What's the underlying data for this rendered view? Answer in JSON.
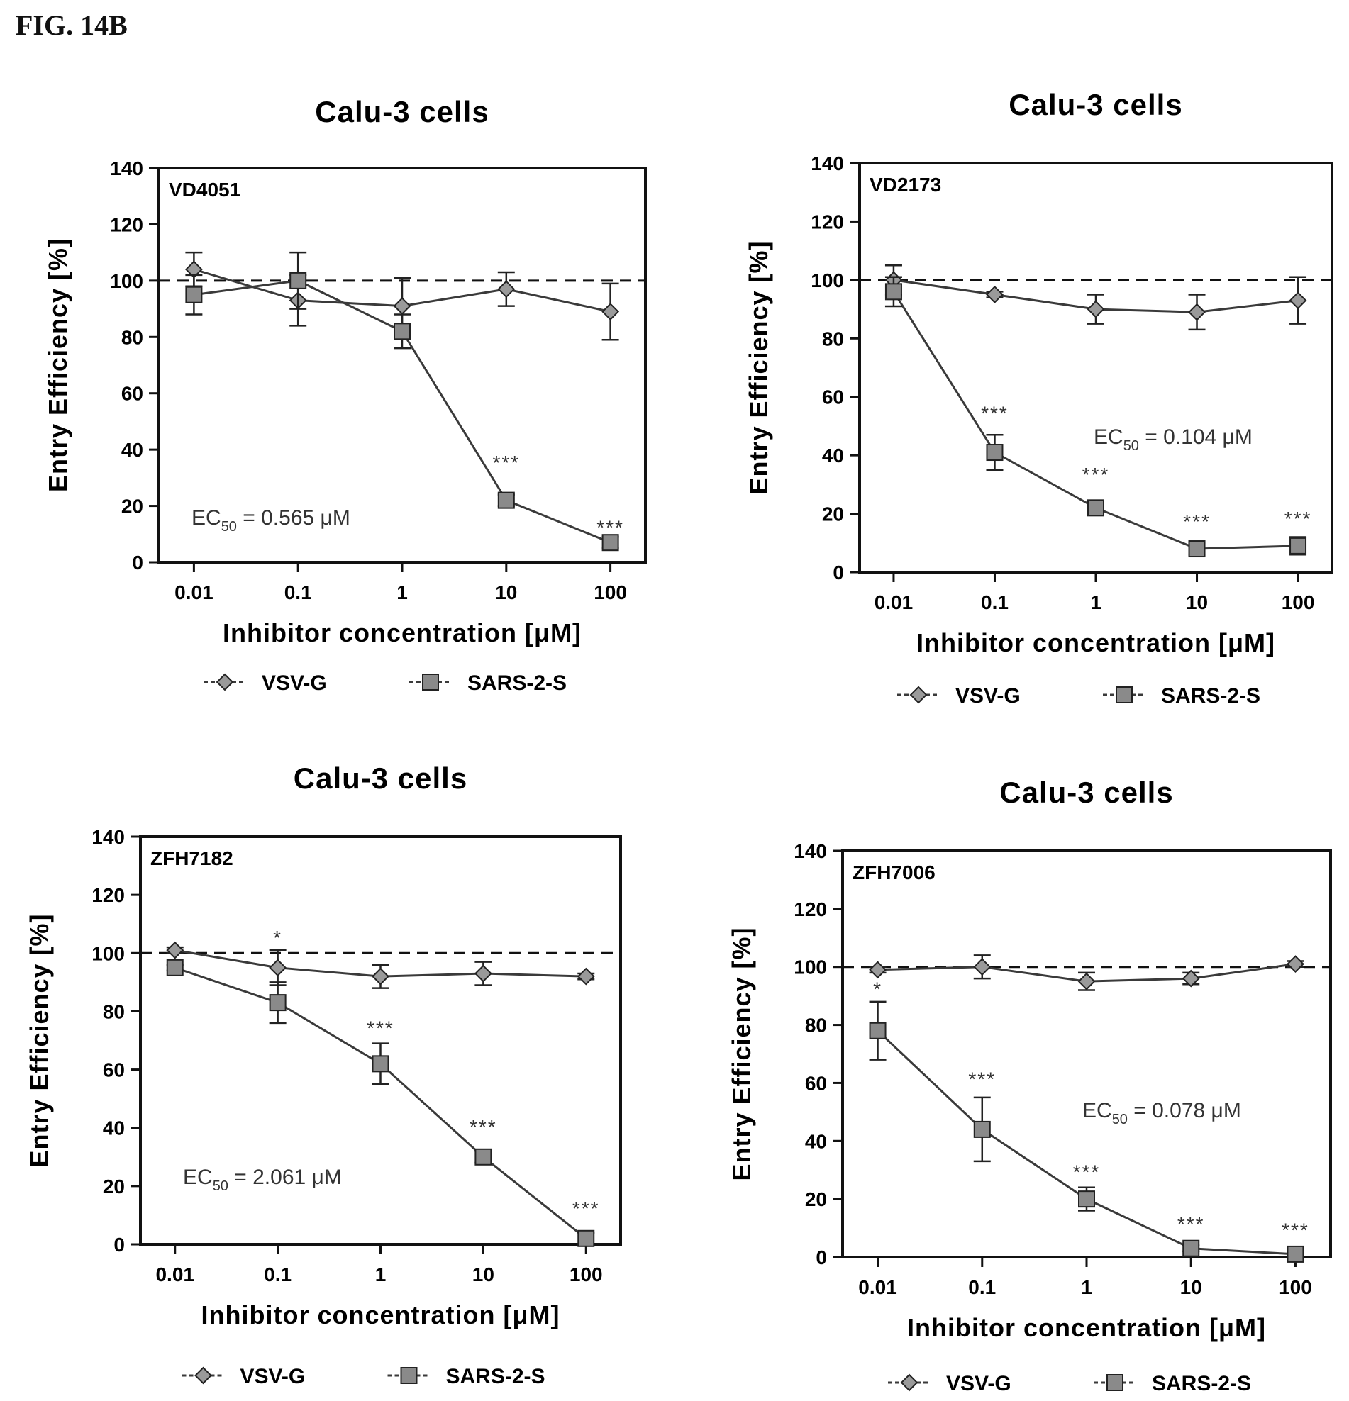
{
  "figure_label": "FIG. 14B",
  "legend_labels": [
    "VSV-G",
    "SARS-2-S"
  ],
  "chart_data": [
    {
      "type": "line",
      "title": "Calu-3 cells",
      "panel_label": "VD4051",
      "xlabel": "Inhibitor concentration [μM]",
      "ylabel": "Entry Efficiency [%]",
      "x_scale": "log",
      "x": [
        0.01,
        0.1,
        1,
        10,
        100
      ],
      "x_ticks": [
        "0.01",
        "0.1",
        "1",
        "10",
        "100"
      ],
      "ylim": [
        0,
        140
      ],
      "y_ticks": [
        "0",
        "20",
        "40",
        "60",
        "80",
        "100",
        "120",
        "140"
      ],
      "reference_line": 100,
      "annotation": {
        "text": "EC",
        "subscript": "50",
        "value": " = 0.565 μM"
      },
      "series": [
        {
          "name": "VSV-G",
          "marker": "diamond",
          "values": [
            104,
            93,
            91,
            97,
            89
          ],
          "errors": [
            6,
            9,
            10,
            6,
            10
          ]
        },
        {
          "name": "SARS-2-S",
          "marker": "square",
          "values": [
            95,
            100,
            82,
            22,
            7
          ],
          "errors": [
            7,
            10,
            6,
            2,
            2
          ]
        }
      ],
      "significance": [
        {
          "x": 10,
          "y": 33,
          "text": "***"
        },
        {
          "x": 100,
          "y": 10,
          "text": "***"
        }
      ]
    },
    {
      "type": "line",
      "title": "Calu-3 cells",
      "panel_label": "VD2173",
      "xlabel": "Inhibitor concentration [μM]",
      "ylabel": "Entry Efficiency [%]",
      "x_scale": "log",
      "x": [
        0.01,
        0.1,
        1,
        10,
        100
      ],
      "x_ticks": [
        "0.01",
        "0.1",
        "1",
        "10",
        "100"
      ],
      "ylim": [
        0,
        140
      ],
      "y_ticks": [
        "0",
        "20",
        "40",
        "60",
        "80",
        "100",
        "120",
        "140"
      ],
      "reference_line": 100,
      "annotation": {
        "text": "EC",
        "subscript": "50",
        "value": " = 0.104 μM"
      },
      "series": [
        {
          "name": "VSV-G",
          "marker": "diamond",
          "values": [
            100,
            95,
            90,
            89,
            93
          ],
          "errors": [
            5,
            1,
            5,
            6,
            8
          ]
        },
        {
          "name": "SARS-2-S",
          "marker": "square",
          "values": [
            96,
            41,
            22,
            8,
            9
          ],
          "errors": [
            5,
            6,
            2,
            2,
            3
          ]
        }
      ],
      "significance": [
        {
          "x": 0.1,
          "y": 52,
          "text": "***"
        },
        {
          "x": 1,
          "y": 31,
          "text": "***"
        },
        {
          "x": 10,
          "y": 15,
          "text": "***"
        },
        {
          "x": 100,
          "y": 16,
          "text": "***"
        }
      ]
    },
    {
      "type": "line",
      "title": "Calu-3 cells",
      "panel_label": "ZFH7182",
      "xlabel": "Inhibitor concentration [μM]",
      "ylabel": "Entry Efficiency [%]",
      "x_scale": "log",
      "x": [
        0.01,
        0.1,
        1,
        10,
        100
      ],
      "x_ticks": [
        "0.01",
        "0.1",
        "1",
        "10",
        "100"
      ],
      "ylim": [
        0,
        140
      ],
      "y_ticks": [
        "0",
        "20",
        "40",
        "60",
        "80",
        "100",
        "120",
        "140"
      ],
      "reference_line": 100,
      "annotation": {
        "text": "EC",
        "subscript": "50",
        "value": " = 2.061 μM"
      },
      "series": [
        {
          "name": "VSV-G",
          "marker": "diamond",
          "values": [
            101,
            95,
            92,
            93,
            92
          ],
          "errors": [
            1,
            6,
            4,
            4,
            1
          ]
        },
        {
          "name": "SARS-2-S",
          "marker": "square",
          "values": [
            95,
            83,
            62,
            30,
            2
          ],
          "errors": [
            1,
            7,
            7,
            2,
            2
          ]
        }
      ],
      "significance": [
        {
          "x": 0.1,
          "y": 103,
          "text": "*"
        },
        {
          "x": 1,
          "y": 72,
          "text": "***"
        },
        {
          "x": 10,
          "y": 38,
          "text": "***"
        },
        {
          "x": 100,
          "y": 10,
          "text": "***"
        }
      ]
    },
    {
      "type": "line",
      "title": "Calu-3 cells",
      "panel_label": "ZFH7006",
      "xlabel": "Inhibitor concentration [μM]",
      "ylabel": "Entry Efficiency [%]",
      "x_scale": "log",
      "x": [
        0.01,
        0.1,
        1,
        10,
        100
      ],
      "x_ticks": [
        "0.01",
        "0.1",
        "1",
        "10",
        "100"
      ],
      "ylim": [
        0,
        140
      ],
      "y_ticks": [
        "0",
        "20",
        "40",
        "60",
        "80",
        "100",
        "120",
        "140"
      ],
      "reference_line": 100,
      "annotation": {
        "text": "EC",
        "subscript": "50",
        "value": " = 0.078 μM"
      },
      "series": [
        {
          "name": "VSV-G",
          "marker": "diamond",
          "values": [
            99,
            100,
            95,
            96,
            101
          ],
          "errors": [
            1,
            4,
            3,
            2,
            1
          ]
        },
        {
          "name": "SARS-2-S",
          "marker": "square",
          "values": [
            78,
            44,
            20,
            3,
            1
          ],
          "errors": [
            10,
            11,
            4,
            1,
            1
          ]
        }
      ],
      "significance": [
        {
          "x": 0.01,
          "y": 90,
          "text": "*"
        },
        {
          "x": 0.1,
          "y": 59,
          "text": "***"
        },
        {
          "x": 1,
          "y": 27,
          "text": "***"
        },
        {
          "x": 10,
          "y": 9,
          "text": "***"
        },
        {
          "x": 100,
          "y": 7,
          "text": "***"
        }
      ]
    }
  ]
}
